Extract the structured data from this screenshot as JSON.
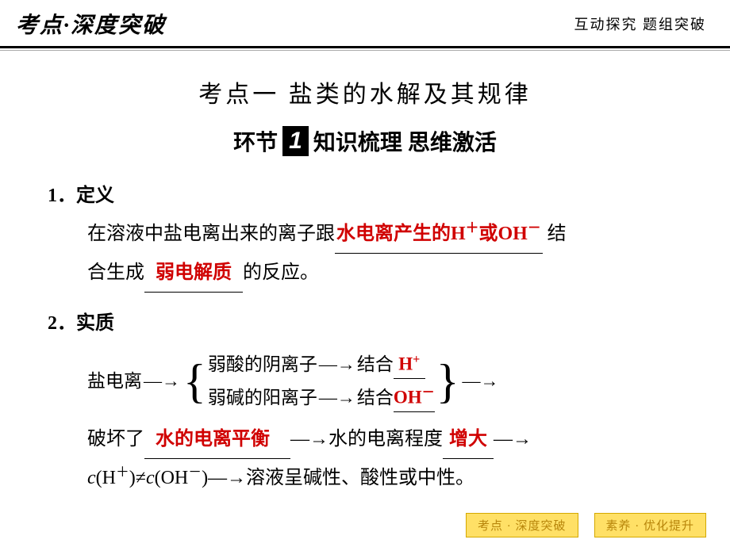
{
  "header": {
    "left": "考点·深度突破",
    "right": "互动探究  题组突破"
  },
  "title_main": "考点一  盐类的水解及其规律",
  "section_title": {
    "prefix": "环节",
    "num": "1",
    "suffix": "  知识梳理  思维激活"
  },
  "item1": {
    "num": "1．",
    "title": "定义",
    "body_pre": "在溶液中盐电离出来的离子跟",
    "red1": "水电离产生的H",
    "red1_sup": "＋",
    "red1_mid": "或OH",
    "red1_sup2": "－",
    "body_mid1": " 结",
    "body_line2_pre": "合生成",
    "red2": "弱电解质",
    "body_mid2": "的反应。"
  },
  "item2": {
    "num": "2．",
    "title": "实质",
    "left_label": "盐电离",
    "row1_a": "弱酸的阴离子",
    "row1_b": "结合",
    "row1_red": "H",
    "row1_sup": "+",
    "row2_a": "弱碱的阳离子",
    "row2_b": "结合",
    "row2_red": "OH",
    "row2_sup": "－",
    "line3_pre": "破坏了",
    "line3_red1": "水的电离平衡",
    "line3_mid1": "—→水的电离程度",
    "line3_red2": "增大",
    "line3_mid2": "—→",
    "line4_c1": "c",
    "line4_h": "(H",
    "line4_hsup": "＋",
    "line4_neq": ")≠",
    "line4_c2": "c",
    "line4_oh": "(OH",
    "line4_ohsup": "－",
    "line4_end": ")—→溶液呈碱性、酸性或中性。"
  },
  "footer": {
    "btn1": "考点 · 深度突破",
    "btn2": "素养 · 优化提升"
  },
  "colors": {
    "red": "#d00000",
    "footer_bg": "#ffe066",
    "footer_text": "#b8860b"
  }
}
